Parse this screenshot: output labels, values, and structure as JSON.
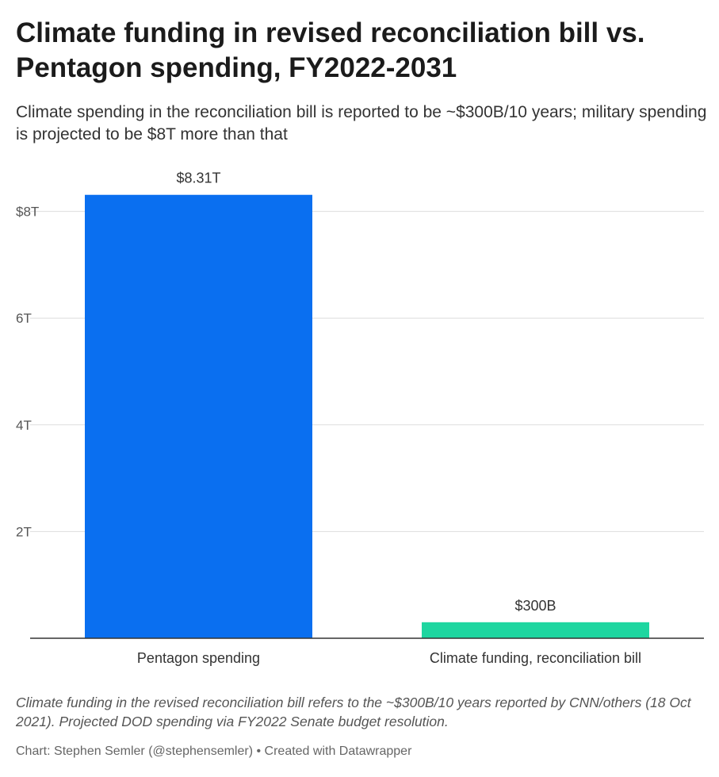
{
  "header": {
    "title": "Climate funding in revised reconciliation bill vs. Pentagon spending, FY2022-2031",
    "subtitle": "Climate spending in the reconciliation bill is reported to be ~$300B/10 years; military spending is projected to be $8T more than that"
  },
  "footer": {
    "note": "Climate funding in the revised reconciliation bill refers to the ~$300B/10 years reported by CNN/others (18 Oct 2021). Projected DOD spending via FY2022 Senate budget resolution.",
    "credit": "Chart: Stephen Semler (@stephensemler) • Created with Datawrapper"
  },
  "chart_data": {
    "type": "bar",
    "title": "Climate funding in revised reconciliation bill vs. Pentagon spending, FY2022-2031",
    "subtitle": "Climate spending in the reconciliation bill is reported to be ~$300B/10 years; military spending is projected to be $8T more than that",
    "categories": [
      "Pentagon spending",
      "Climate funding, reconciliation bill"
    ],
    "values": [
      8.31,
      0.3
    ],
    "value_labels": [
      "$8.31T",
      "$300B"
    ],
    "colors": [
      "#0a6ff0",
      "#1ed6a0"
    ],
    "unit": "trillions USD",
    "ylim": [
      0,
      8.31
    ],
    "yticks": [
      2,
      4,
      6,
      8
    ],
    "ytick_labels": [
      "2T",
      "4T",
      "6T",
      "$8T"
    ],
    "grid": true,
    "xlabel": "",
    "ylabel": ""
  }
}
